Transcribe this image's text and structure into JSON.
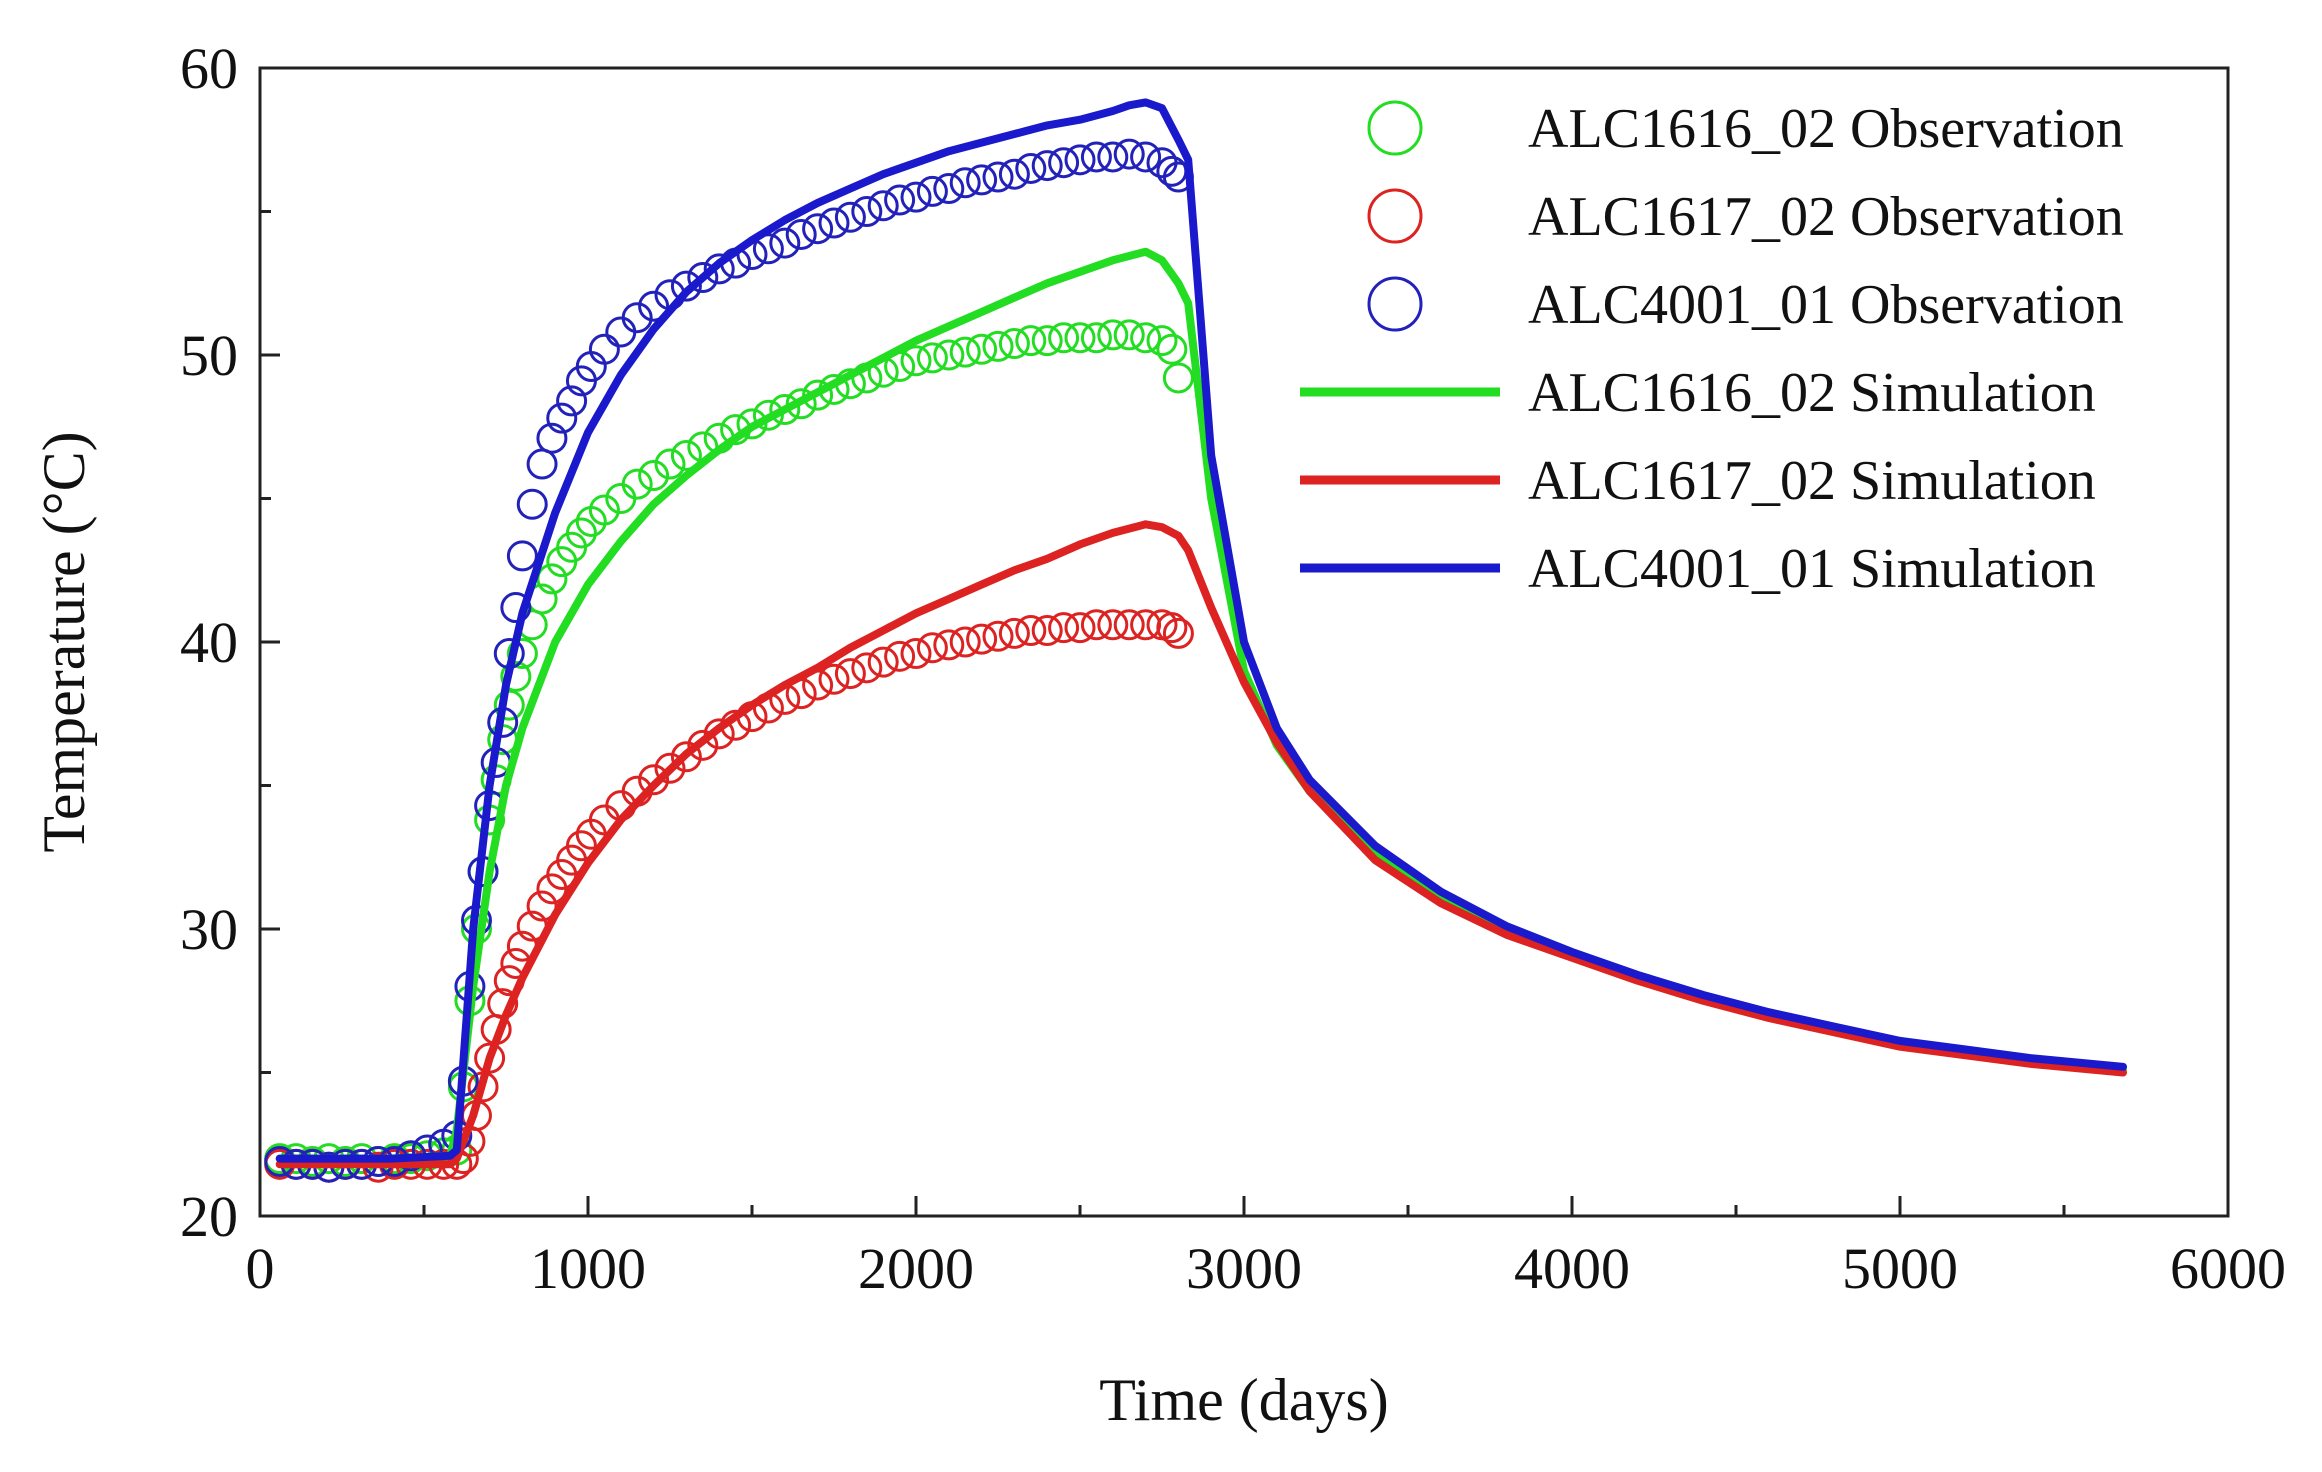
{
  "chart_data": {
    "type": "line",
    "title": "",
    "xlabel": "Time (days)",
    "ylabel": "Temperature (°C)",
    "xlim": [
      0,
      6000
    ],
    "ylim": [
      20,
      60
    ],
    "xticks": [
      0,
      1000,
      2000,
      3000,
      4000,
      5000,
      6000
    ],
    "yticks": [
      20,
      30,
      40,
      50,
      60
    ],
    "xtick_labels": [
      "0",
      "1000",
      "2000",
      "3000",
      "4000",
      "5000",
      "6000"
    ],
    "ytick_labels": [
      "20",
      "30",
      "40",
      "50",
      "60"
    ],
    "grid": false,
    "legend_position": "top-right",
    "series": [
      {
        "name": "ALC1616_02 Observation",
        "kind": "markers",
        "marker": "circle-open",
        "color": "#22dd22",
        "x": [
          60,
          110,
          160,
          210,
          260,
          310,
          360,
          410,
          460,
          510,
          560,
          600,
          620,
          640,
          660,
          680,
          700,
          720,
          740,
          760,
          780,
          800,
          830,
          860,
          890,
          920,
          950,
          980,
          1010,
          1050,
          1100,
          1150,
          1200,
          1250,
          1300,
          1350,
          1400,
          1450,
          1500,
          1550,
          1600,
          1650,
          1700,
          1750,
          1800,
          1850,
          1900,
          1950,
          2000,
          2050,
          2100,
          2150,
          2200,
          2250,
          2300,
          2350,
          2400,
          2450,
          2500,
          2550,
          2600,
          2650,
          2700,
          2750,
          2780,
          2800
        ],
        "y": [
          22.0,
          22.0,
          21.9,
          22.0,
          21.9,
          22.0,
          21.9,
          22.0,
          22.0,
          22.1,
          22.2,
          22.3,
          24.5,
          27.5,
          30.0,
          32.0,
          33.8,
          35.2,
          36.6,
          37.8,
          38.8,
          39.6,
          40.6,
          41.5,
          42.2,
          42.8,
          43.3,
          43.8,
          44.2,
          44.6,
          45.0,
          45.5,
          45.8,
          46.2,
          46.5,
          46.8,
          47.1,
          47.4,
          47.6,
          47.9,
          48.1,
          48.3,
          48.6,
          48.8,
          49.0,
          49.2,
          49.4,
          49.6,
          49.8,
          49.9,
          50.0,
          50.1,
          50.2,
          50.3,
          50.4,
          50.5,
          50.5,
          50.6,
          50.6,
          50.6,
          50.7,
          50.7,
          50.6,
          50.5,
          50.2,
          49.2
        ]
      },
      {
        "name": "ALC1617_02 Observation",
        "kind": "markers",
        "marker": "circle-open",
        "color": "#dd2222",
        "x": [
          60,
          110,
          160,
          210,
          260,
          310,
          360,
          410,
          460,
          510,
          560,
          600,
          620,
          640,
          660,
          680,
          700,
          720,
          740,
          760,
          780,
          800,
          830,
          860,
          890,
          920,
          950,
          980,
          1010,
          1050,
          1100,
          1150,
          1200,
          1250,
          1300,
          1350,
          1400,
          1450,
          1500,
          1550,
          1600,
          1650,
          1700,
          1750,
          1800,
          1850,
          1900,
          1950,
          2000,
          2050,
          2100,
          2150,
          2200,
          2250,
          2300,
          2350,
          2400,
          2450,
          2500,
          2550,
          2600,
          2650,
          2700,
          2750,
          2780,
          2800
        ],
        "y": [
          21.8,
          21.8,
          21.8,
          21.7,
          21.8,
          21.8,
          21.7,
          21.8,
          21.8,
          21.8,
          21.8,
          21.8,
          22.0,
          22.6,
          23.5,
          24.5,
          25.5,
          26.5,
          27.4,
          28.2,
          28.8,
          29.4,
          30.1,
          30.8,
          31.4,
          31.9,
          32.4,
          32.9,
          33.3,
          33.8,
          34.3,
          34.8,
          35.2,
          35.6,
          36.0,
          36.4,
          36.8,
          37.1,
          37.4,
          37.7,
          38.0,
          38.2,
          38.5,
          38.7,
          38.9,
          39.1,
          39.3,
          39.5,
          39.6,
          39.8,
          39.9,
          40.0,
          40.1,
          40.2,
          40.3,
          40.4,
          40.4,
          40.5,
          40.5,
          40.6,
          40.6,
          40.6,
          40.6,
          40.6,
          40.5,
          40.3
        ]
      },
      {
        "name": "ALC4001_01 Observation",
        "kind": "markers",
        "marker": "circle-open",
        "color": "#2222bb",
        "x": [
          60,
          110,
          160,
          210,
          260,
          310,
          360,
          410,
          460,
          510,
          560,
          600,
          620,
          640,
          660,
          680,
          700,
          720,
          740,
          760,
          780,
          800,
          830,
          860,
          890,
          920,
          950,
          980,
          1010,
          1050,
          1100,
          1150,
          1200,
          1250,
          1300,
          1350,
          1400,
          1450,
          1500,
          1550,
          1600,
          1650,
          1700,
          1750,
          1800,
          1850,
          1900,
          1950,
          2000,
          2050,
          2100,
          2150,
          2200,
          2250,
          2300,
          2350,
          2400,
          2450,
          2500,
          2550,
          2600,
          2650,
          2700,
          2750,
          2780,
          2800
        ],
        "y": [
          21.9,
          21.8,
          21.8,
          21.7,
          21.8,
          21.8,
          21.9,
          21.9,
          22.1,
          22.3,
          22.5,
          22.8,
          24.7,
          28.0,
          30.3,
          32.0,
          34.3,
          35.8,
          37.2,
          39.6,
          41.2,
          43.0,
          44.8,
          46.2,
          47.1,
          47.8,
          48.4,
          49.1,
          49.6,
          50.2,
          50.8,
          51.3,
          51.7,
          52.1,
          52.4,
          52.7,
          53.0,
          53.2,
          53.5,
          53.7,
          53.9,
          54.2,
          54.4,
          54.6,
          54.8,
          55.0,
          55.2,
          55.4,
          55.5,
          55.7,
          55.8,
          56.0,
          56.1,
          56.2,
          56.3,
          56.5,
          56.6,
          56.7,
          56.8,
          56.9,
          56.9,
          57.0,
          56.9,
          56.7,
          56.4,
          56.2
        ]
      },
      {
        "name": "ALC1616_02 Simulation",
        "kind": "line",
        "color": "#22dd22",
        "x": [
          60,
          200,
          400,
          580,
          600,
          650,
          700,
          750,
          800,
          900,
          1000,
          1100,
          1200,
          1300,
          1400,
          1500,
          1600,
          1700,
          1800,
          1900,
          2000,
          2100,
          2200,
          2300,
          2400,
          2500,
          2600,
          2700,
          2750,
          2800,
          2830,
          2900,
          3000,
          3100,
          3200,
          3400,
          3600,
          3800,
          4000,
          4200,
          4400,
          4600,
          4800,
          5000,
          5200,
          5400,
          5680
        ],
        "y": [
          22.0,
          22.0,
          22.0,
          22.1,
          23.0,
          28.0,
          32.0,
          35.0,
          37.0,
          40.0,
          42.0,
          43.5,
          44.8,
          45.8,
          46.7,
          47.5,
          48.1,
          48.7,
          49.3,
          49.9,
          50.5,
          51.0,
          51.5,
          52.0,
          52.5,
          52.9,
          53.3,
          53.6,
          53.3,
          52.5,
          51.8,
          45.0,
          39.0,
          36.4,
          34.8,
          32.6,
          31.1,
          30.0,
          29.1,
          28.3,
          27.6,
          27.0,
          26.5,
          26.0,
          25.7,
          25.4,
          25.1
        ]
      },
      {
        "name": "ALC1617_02 Simulation",
        "kind": "line",
        "color": "#dd2222",
        "x": [
          60,
          200,
          400,
          580,
          600,
          650,
          700,
          750,
          800,
          900,
          1000,
          1100,
          1200,
          1300,
          1400,
          1500,
          1600,
          1700,
          1800,
          1900,
          2000,
          2100,
          2200,
          2300,
          2400,
          2500,
          2600,
          2700,
          2750,
          2800,
          2830,
          2900,
          3000,
          3100,
          3200,
          3400,
          3600,
          3800,
          4000,
          4200,
          4400,
          4600,
          4800,
          5000,
          5200,
          5400,
          5680
        ],
        "y": [
          21.8,
          21.8,
          21.8,
          21.8,
          22.0,
          23.5,
          25.5,
          27.0,
          28.3,
          30.5,
          32.3,
          33.8,
          35.0,
          36.1,
          37.0,
          37.8,
          38.5,
          39.1,
          39.8,
          40.4,
          41.0,
          41.5,
          42.0,
          42.5,
          42.9,
          43.4,
          43.8,
          44.1,
          44.0,
          43.7,
          43.2,
          41.2,
          38.6,
          36.5,
          34.8,
          32.4,
          30.9,
          29.8,
          29.0,
          28.2,
          27.5,
          26.9,
          26.4,
          25.9,
          25.6,
          25.3,
          25.0
        ]
      },
      {
        "name": "ALC4001_01 Simulation",
        "kind": "line",
        "color": "#1a1acc",
        "x": [
          60,
          200,
          400,
          580,
          600,
          650,
          700,
          750,
          800,
          900,
          1000,
          1100,
          1200,
          1300,
          1400,
          1500,
          1600,
          1700,
          1800,
          1900,
          2000,
          2100,
          2200,
          2300,
          2400,
          2500,
          2600,
          2650,
          2700,
          2750,
          2800,
          2830,
          2900,
          3000,
          3100,
          3200,
          3400,
          3600,
          3800,
          4000,
          4200,
          4400,
          4600,
          4800,
          5000,
          5200,
          5400,
          5680
        ],
        "y": [
          22.0,
          22.0,
          22.0,
          22.1,
          22.3,
          30.0,
          35.0,
          38.5,
          41.0,
          44.5,
          47.3,
          49.3,
          50.9,
          52.2,
          53.2,
          54.0,
          54.7,
          55.3,
          55.8,
          56.3,
          56.7,
          57.1,
          57.4,
          57.7,
          58.0,
          58.2,
          58.5,
          58.7,
          58.8,
          58.6,
          57.5,
          56.8,
          46.5,
          40.0,
          37.0,
          35.2,
          32.9,
          31.3,
          30.1,
          29.2,
          28.4,
          27.7,
          27.1,
          26.6,
          26.1,
          25.8,
          25.5,
          25.2
        ]
      }
    ]
  }
}
